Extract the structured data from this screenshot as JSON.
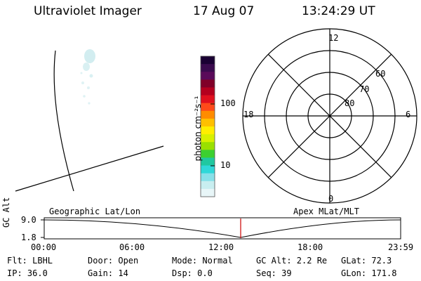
{
  "header": {
    "instrument": "Ultraviolet Imager",
    "date": "17 Aug 07",
    "time": "13:24:29 UT"
  },
  "colorbar": {
    "unit_label": "photon cm⁻²s⁻¹",
    "tick_labels": [
      "100",
      "10"
    ],
    "colors": [
      "#1a0033",
      "#3a0a4e",
      "#5a0a5a",
      "#800028",
      "#b4001e",
      "#e0101e",
      "#ff4a1a",
      "#ff8c00",
      "#ffc000",
      "#ffee00",
      "#d8f000",
      "#9ae000",
      "#3cd030",
      "#20c8a0",
      "#30d8d8",
      "#88e0e8",
      "#c8eef0",
      "#e8f6f8"
    ]
  },
  "left_panel": {
    "projection_label": "Geographic Lat/Lon"
  },
  "polar_plot": {
    "projection_label": "Apex MLat/MLT",
    "mlt_labels": [
      "12",
      "18",
      "6",
      "0"
    ],
    "mlat_labels": [
      "60",
      "70",
      "80"
    ]
  },
  "altitude_strip": {
    "ylabel": "GC Alt",
    "y_ticks": [
      "9.0",
      "1.8"
    ],
    "x_ticks": [
      "00:00",
      "06:00",
      "12:00",
      "18:00",
      "23:59"
    ],
    "marker_color": "#cc0000"
  },
  "info_rows": [
    [
      "Flt: LBHL",
      "Door: Open",
      "Mode: Normal",
      "GC Alt: 2.2 Re",
      "GLat:  72.3"
    ],
    [
      "IP: 36.0",
      "Gain: 14",
      "Dsp:     0.0",
      "Seq: 39",
      "GLon: 171.8"
    ]
  ]
}
